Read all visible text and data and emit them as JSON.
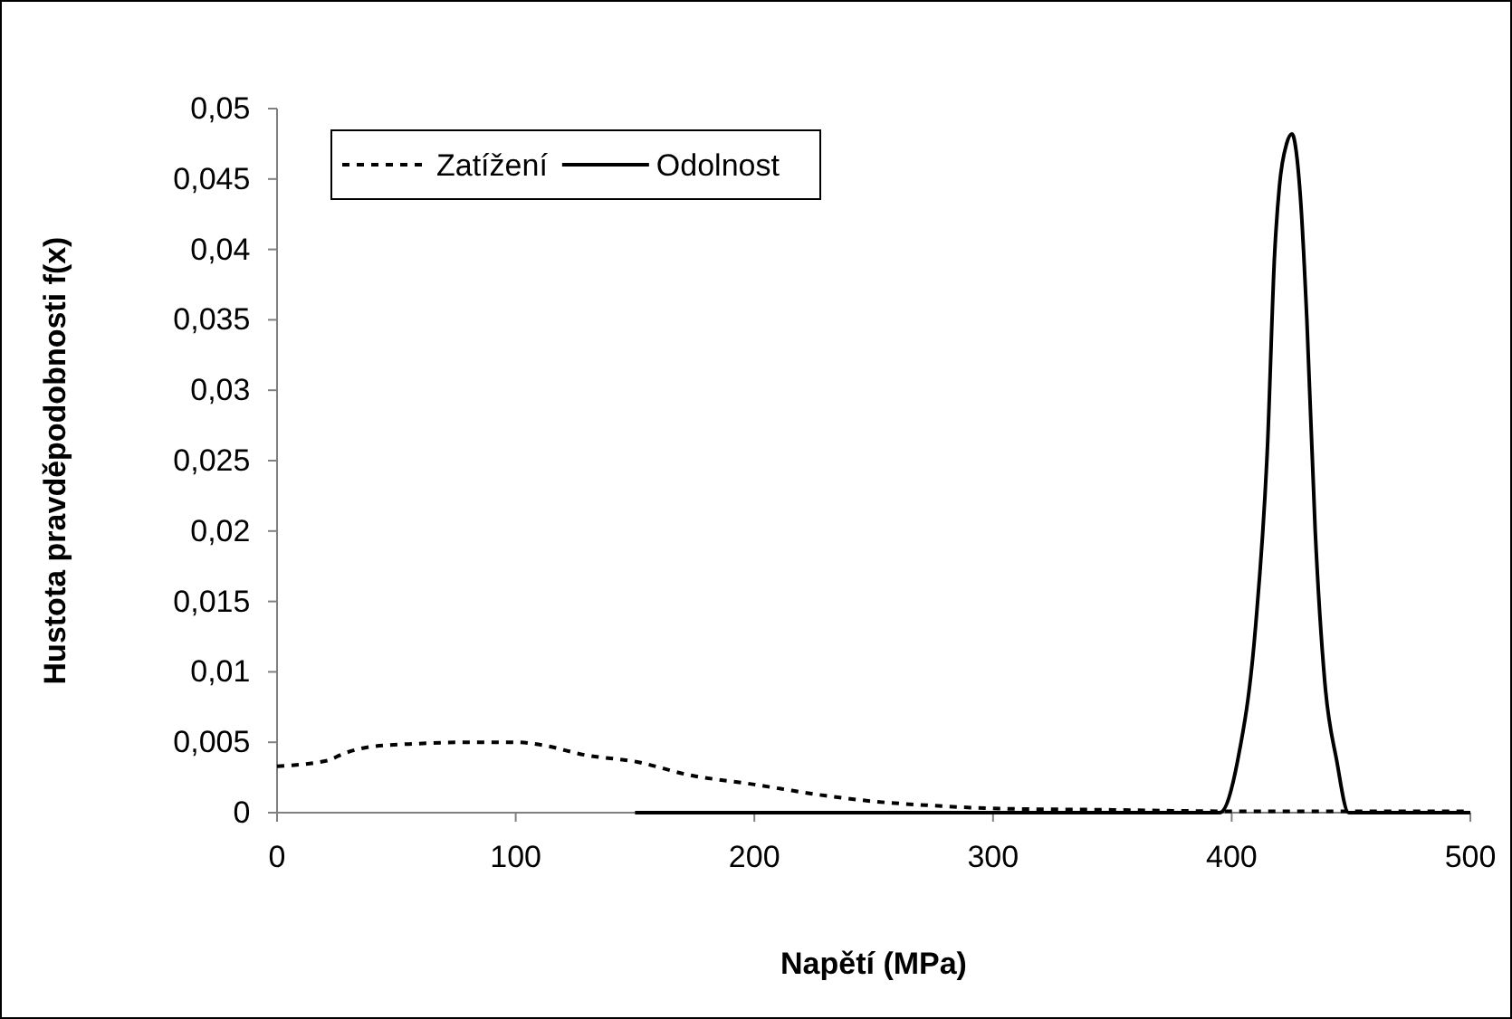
{
  "chart_data": {
    "type": "line",
    "xlabel": "Napětí (MPa)",
    "ylabel": "Hustota pravděpodobnosti f(x)",
    "xlim": [
      0,
      500
    ],
    "xticks": [
      0,
      100,
      200,
      300,
      400,
      500
    ],
    "ylim": [
      0,
      0.05
    ],
    "yticks": [
      {
        "value": 0,
        "label": "0"
      },
      {
        "value": 0.005,
        "label": "0,005"
      },
      {
        "value": 0.01,
        "label": "0,01"
      },
      {
        "value": 0.015,
        "label": "0,015"
      },
      {
        "value": 0.02,
        "label": "0,02"
      },
      {
        "value": 0.025,
        "label": "0,025"
      },
      {
        "value": 0.03,
        "label": "0,03"
      },
      {
        "value": 0.035,
        "label": "0,035"
      },
      {
        "value": 0.04,
        "label": "0,04"
      },
      {
        "value": 0.045,
        "label": "0,045"
      },
      {
        "value": 0.05,
        "label": "0,05"
      }
    ],
    "grid": false,
    "legend": "top left",
    "marker": "none",
    "series": [
      {
        "name": "Zatížení",
        "color": "#000000",
        "line_style": "dashed",
        "x": [
          0,
          21,
          28,
          40,
          59,
          80,
          101,
          111,
          129,
          151,
          172,
          200,
          211,
          230,
          250,
          275,
          300,
          350,
          400,
          450,
          500
        ],
        "values": [
          0.0033,
          0.0037,
          0.0042,
          0.0047,
          0.0049,
          0.005,
          0.005,
          0.0048,
          0.0041,
          0.0036,
          0.0027,
          0.002,
          0.0017,
          0.0012,
          0.0008,
          0.0005,
          0.0003,
          0.0002,
          0.0001,
          0.0001,
          0.0001
        ]
      },
      {
        "name": "Odolnost",
        "color": "#000000",
        "line_style": "solid",
        "x": [
          150,
          300,
          395,
          402.5,
          410,
          415,
          418,
          420,
          423,
          425.3,
          427,
          429,
          431.5,
          435,
          439,
          444,
          449,
          470,
          500
        ],
        "values": [
          0,
          0,
          0,
          0.0037,
          0.0132,
          0.026,
          0.0397,
          0.0445,
          0.0475,
          0.0482,
          0.047,
          0.0432,
          0.035,
          0.02,
          0.0093,
          0.0037,
          0,
          0,
          0
        ]
      }
    ]
  }
}
